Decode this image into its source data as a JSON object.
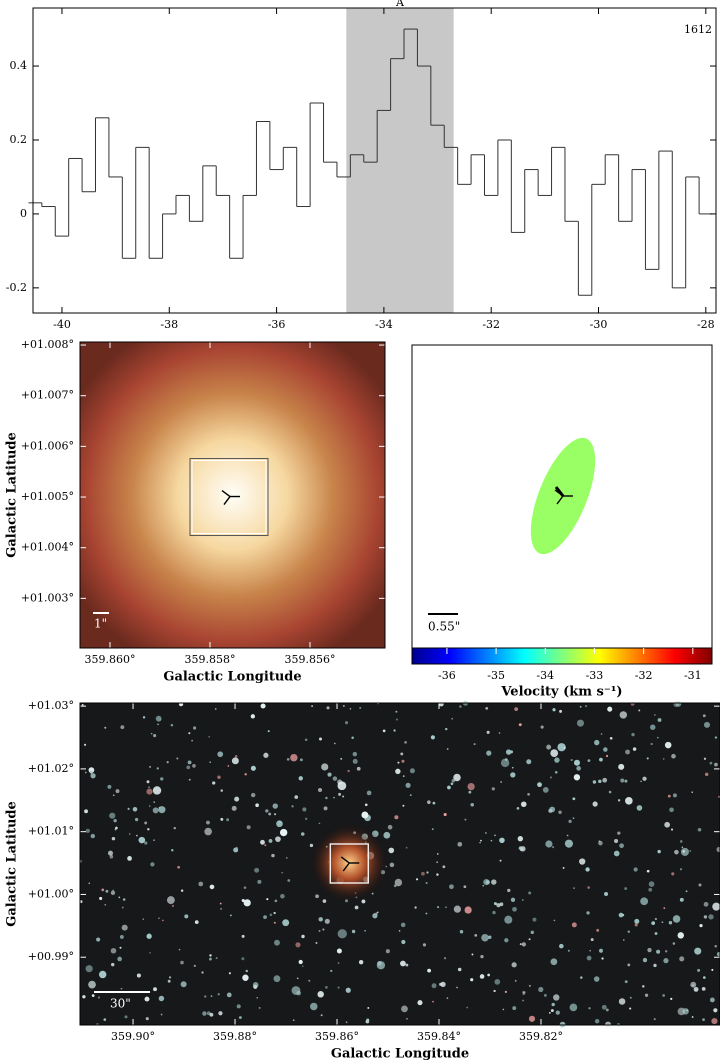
{
  "chart_data": [
    {
      "type": "line",
      "step": true,
      "x": [
        -40.5,
        -40.25,
        -40.0,
        -39.75,
        -39.5,
        -39.25,
        -39.0,
        -38.75,
        -38.5,
        -38.25,
        -38.0,
        -37.75,
        -37.5,
        -37.25,
        -37.0,
        -36.75,
        -36.5,
        -36.25,
        -36.0,
        -35.75,
        -35.5,
        -35.25,
        -35.0,
        -34.75,
        -34.5,
        -34.25,
        -34.0,
        -33.75,
        -33.5,
        -33.25,
        -33.0,
        -32.75,
        -32.5,
        -32.25,
        -32.0,
        -31.75,
        -31.5,
        -31.25,
        -31.0,
        -30.75,
        -30.5,
        -30.25,
        -30.0,
        -29.75,
        -29.5,
        -29.25,
        -29.0,
        -28.75,
        -28.5,
        -28.25,
        -28.0
      ],
      "values": [
        0.03,
        0.02,
        -0.06,
        0.15,
        0.06,
        0.26,
        0.1,
        -0.12,
        0.18,
        -0.12,
        0.0,
        0.05,
        -0.02,
        0.13,
        0.05,
        -0.12,
        0.05,
        0.25,
        0.12,
        0.18,
        0.02,
        0.3,
        0.14,
        0.1,
        0.16,
        0.14,
        0.28,
        0.42,
        0.5,
        0.4,
        0.24,
        0.18,
        0.08,
        0.16,
        0.05,
        0.2,
        -0.05,
        0.12,
        0.05,
        0.18,
        -0.02,
        -0.22,
        0.08,
        0.16,
        -0.02,
        0.12,
        -0.15,
        0.17,
        -0.2,
        0.1,
        0.0
      ],
      "color": "#333333",
      "xlim": [
        -40.54,
        -27.81
      ],
      "ylim": [
        -0.268,
        0.557
      ],
      "xticks": [
        -40,
        -38,
        -36,
        -34,
        -32,
        -30,
        -28
      ],
      "yticks": [
        -0.2,
        0,
        0.2,
        0.4
      ],
      "shade": {
        "range": [
          -34.7,
          -32.7
        ],
        "color": "#c8c8c8",
        "label": "A"
      },
      "label": "1612"
    },
    {
      "type": "image",
      "xlabel": "Galactic Longitude",
      "ylabel": "Galactic Latitude",
      "xlim": [
        359.8606,
        359.8545
      ],
      "ylim": [
        1.00202,
        1.00806
      ],
      "xticks": [
        {
          "value": 359.86,
          "label": "359.860°"
        },
        {
          "value": 359.858,
          "label": "359.858°"
        },
        {
          "value": 359.856,
          "label": "359.856°"
        }
      ],
      "yticks": [
        {
          "value": 1.008,
          "label": "+01.008°"
        },
        {
          "value": 1.007,
          "label": "+01.007°"
        },
        {
          "value": 1.006,
          "label": "+01.006°"
        },
        {
          "value": 1.005,
          "label": "+01.005°"
        },
        {
          "value": 1.004,
          "label": "+01.004°"
        },
        {
          "value": 1.003,
          "label": "+01.003°"
        }
      ],
      "source": {
        "l": 359.8576,
        "b": 1.00501
      },
      "scalebar": "1\""
    },
    {
      "type": "ellipse",
      "velocity": -33.5,
      "scalebar": "0.55\"",
      "colorbar": {
        "clim": [
          -36.71,
          -30.61
        ],
        "ticks": [
          -36,
          -35,
          -34,
          -33,
          -32,
          -31
        ],
        "label": "Velocity (km s⁻¹)"
      }
    },
    {
      "type": "image",
      "xlabel": "Galactic Longitude",
      "ylabel": "Galactic Latitude",
      "xlim": [
        359.9104,
        359.7849
      ],
      "ylim": [
        0.9792,
        1.0305
      ],
      "xticks": [
        {
          "value": 359.9,
          "label": "359.90°"
        },
        {
          "value": 359.88,
          "label": "359.88°"
        },
        {
          "value": 359.86,
          "label": "359.86°"
        },
        {
          "value": 359.84,
          "label": "359.84°"
        },
        {
          "value": 359.82,
          "label": "359.82°"
        }
      ],
      "yticks": [
        {
          "value": 1.03,
          "label": "+01.03°"
        },
        {
          "value": 1.02,
          "label": "+01.02°"
        },
        {
          "value": 1.01,
          "label": "+01.01°"
        },
        {
          "value": 1.0,
          "label": "+01.00°"
        },
        {
          "value": 0.99,
          "label": "+00.99°"
        }
      ],
      "source": {
        "l": 359.8576,
        "b": 1.00501
      },
      "scalebar": "30\""
    }
  ]
}
